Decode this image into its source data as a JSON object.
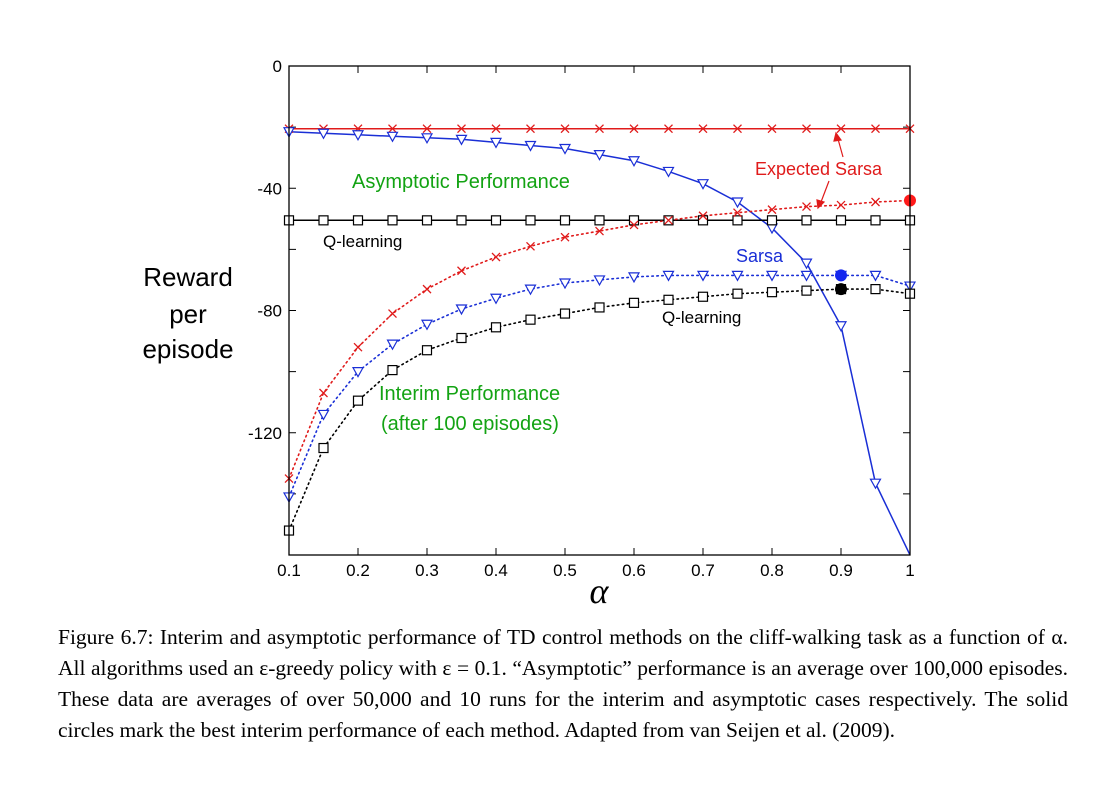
{
  "chart_data": {
    "type": "line",
    "xlabel": "α",
    "ylabel": [
      "Reward",
      "per",
      "episode"
    ],
    "xlim": [
      0.1,
      1.0
    ],
    "ylim": [
      -160,
      0
    ],
    "xticks": [
      0.1,
      0.2,
      0.3,
      0.4,
      0.5,
      0.6,
      0.7,
      0.8,
      0.9,
      1.0
    ],
    "xtick_labels": [
      "0.1",
      "0.2",
      "0.3",
      "0.4",
      "0.5",
      "0.6",
      "0.7",
      "0.8",
      "0.9",
      "1"
    ],
    "yticks": [
      0,
      -40,
      -80,
      -120
    ],
    "ytick_labels": [
      "0",
      "-40",
      "-80",
      "-120"
    ],
    "yminor_ticks": [
      -20,
      -60,
      -100,
      -140
    ],
    "x": [
      0.1,
      0.15,
      0.2,
      0.25,
      0.3,
      0.35,
      0.4,
      0.45,
      0.5,
      0.55,
      0.6,
      0.65,
      0.7,
      0.75,
      0.8,
      0.85,
      0.9,
      0.95,
      1.0
    ],
    "series": [
      {
        "name": "Expected Sarsa (asymptotic)",
        "color": "#e01b1b",
        "marker": "x",
        "line": "solid",
        "values": [
          -20.5,
          -20.5,
          -20.5,
          -20.5,
          -20.5,
          -20.5,
          -20.5,
          -20.5,
          -20.5,
          -20.5,
          -20.5,
          -20.5,
          -20.5,
          -20.5,
          -20.5,
          -20.5,
          -20.5,
          -20.5,
          -20.5
        ]
      },
      {
        "name": "Sarsa (asymptotic)",
        "color": "#1a2fd6",
        "marker": "triangle-down",
        "line": "solid",
        "values": [
          -21.5,
          -22,
          -22.5,
          -23,
          -23.5,
          -24,
          -25,
          -26,
          -27,
          -29,
          -31,
          -34.5,
          -38.5,
          -44.5,
          -53,
          -64.5,
          -85,
          -136.5,
          -160
        ]
      },
      {
        "name": "Q-learning (asymptotic)",
        "color": "#000000",
        "marker": "square",
        "line": "solid",
        "values": [
          -50.5,
          -50.5,
          -50.5,
          -50.5,
          -50.5,
          -50.5,
          -50.5,
          -50.5,
          -50.5,
          -50.5,
          -50.5,
          -50.5,
          -50.5,
          -50.5,
          -50.5,
          -50.5,
          -50.5,
          -50.5,
          -50.5
        ]
      },
      {
        "name": "Expected Sarsa (interim)",
        "color": "#e01b1b",
        "marker": "x",
        "line": "dotted",
        "values": [
          -135,
          -107,
          -92,
          -81,
          -73,
          -67,
          -62.5,
          -59,
          -56,
          -54,
          -52,
          -50.5,
          -49,
          -48,
          -47,
          -46,
          -45.5,
          -44.5,
          -44
        ]
      },
      {
        "name": "Sarsa (interim)",
        "color": "#1a2fd6",
        "marker": "triangle-down",
        "line": "dotted",
        "values": [
          -141,
          -114,
          -100,
          -91,
          -84.5,
          -79.5,
          -76,
          -73,
          -71,
          -70,
          -69,
          -68.5,
          -68.5,
          -68.5,
          -68.5,
          -68.5,
          -68.5,
          -68.5,
          -72
        ]
      },
      {
        "name": "Q-learning (interim)",
        "color": "#000000",
        "marker": "square",
        "line": "dotted",
        "values": [
          -152,
          -125,
          -109.5,
          -99.5,
          -93,
          -89,
          -85.5,
          -83,
          -81,
          -79,
          -77.5,
          -76.5,
          -75.5,
          -74.5,
          -74,
          -73.5,
          -73,
          -73,
          -74.5
        ]
      }
    ],
    "best_points": [
      {
        "name": "Expected Sarsa best interim",
        "color": "#ff1a1a",
        "x": 1.0,
        "y": -44
      },
      {
        "name": "Sarsa best interim",
        "color": "#1426ee",
        "x": 0.9,
        "y": -68.5
      },
      {
        "name": "Q-learning best interim",
        "color": "#000000",
        "x": 0.9,
        "y": -73
      }
    ],
    "annotations": {
      "asymptotic": {
        "text": "Asymptotic Performance",
        "color": "#13a313"
      },
      "interim_line1": {
        "text": "Interim Performance",
        "color": "#13a313"
      },
      "interim_line2": {
        "text": "(after 100 episodes)",
        "color": "#13a313"
      },
      "expected_sarsa": {
        "text": "Expected Sarsa",
        "color": "#e01b1b"
      },
      "sarsa": {
        "text": "Sarsa",
        "color": "#1a2fd6"
      },
      "q_asymptotic": {
        "text": "Q-learning",
        "color": "#000000"
      },
      "q_interim": {
        "text": "Q-learning",
        "color": "#000000"
      }
    }
  },
  "caption": {
    "label": "Figure 6.7:",
    "text": "Interim and asymptotic performance of TD control methods on the cliff-walking task as a function of α. All algorithms used an ε-greedy policy with ε = 0.1. “Asymptotic” performance is an average over 100,000 episodes. These data are averages of over 50,000 and 10 runs for the interim and asymptotic cases respectively. The solid circles mark the best interim performance of each method. Adapted from van Seijen et al. (2009)."
  }
}
